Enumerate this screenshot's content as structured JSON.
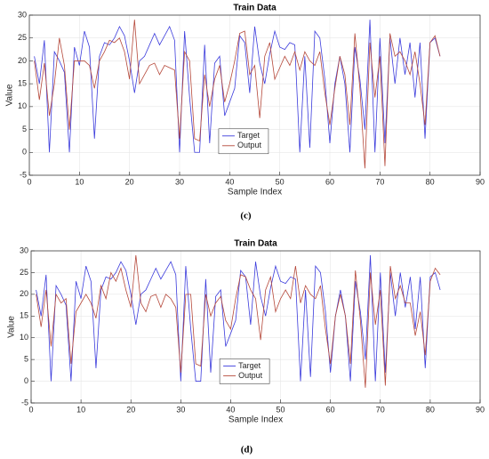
{
  "chart_data": [
    {
      "type": "line",
      "title": "Train Data",
      "caption": "(c)",
      "x_label": "Sample Index",
      "y_label": "Value",
      "x": [
        1,
        2,
        3,
        4,
        5,
        6,
        7,
        8,
        9,
        10,
        11,
        12,
        13,
        14,
        15,
        16,
        17,
        18,
        19,
        20,
        21,
        22,
        23,
        24,
        25,
        26,
        27,
        28,
        29,
        30,
        31,
        32,
        33,
        34,
        35,
        36,
        37,
        38,
        39,
        40,
        41,
        42,
        43,
        44,
        45,
        46,
        47,
        48,
        49,
        50,
        51,
        52,
        53,
        54,
        55,
        56,
        57,
        58,
        59,
        60,
        61,
        62,
        63,
        64,
        65,
        66,
        67,
        68,
        69,
        70,
        71,
        72,
        73,
        74,
        75,
        76,
        77,
        78,
        79,
        80,
        81,
        82
      ],
      "series": [
        {
          "name": "Target",
          "color": "#3b3bdc",
          "values": [
            21,
            15,
            24.5,
            0,
            22,
            20,
            17.5,
            0,
            23,
            19,
            26.5,
            23,
            3,
            21,
            24,
            23.5,
            25,
            27.5,
            25.5,
            20,
            13,
            20,
            21,
            23.5,
            26,
            23.5,
            25.5,
            27.5,
            24.5,
            0,
            26.5,
            12,
            0,
            0,
            23.5,
            2,
            19.5,
            21,
            8,
            11,
            14,
            25.5,
            24,
            13,
            27.5,
            19.5,
            15,
            21.5,
            26.5,
            23,
            22.5,
            24,
            23.5,
            0,
            21,
            1,
            26.5,
            25,
            16,
            2,
            15,
            21,
            15,
            0,
            23,
            16,
            5,
            29,
            0,
            25,
            2,
            25,
            15,
            25,
            17,
            24,
            12,
            24,
            3,
            24,
            25,
            21
          ]
        },
        {
          "name": "Output",
          "color": "#b5483a",
          "values": [
            20,
            11.5,
            19.5,
            8,
            15,
            25,
            19,
            5,
            20,
            20,
            20,
            19,
            14,
            20,
            22,
            24.5,
            24,
            25,
            22,
            16,
            29,
            15,
            17,
            19,
            19.5,
            17,
            19,
            18.5,
            18,
            3,
            22,
            20,
            3,
            2.5,
            17,
            10,
            16,
            19,
            11,
            15,
            20,
            26,
            26.5,
            17,
            19,
            7.5,
            21,
            24,
            16,
            18.5,
            21,
            19,
            22,
            18,
            22,
            20,
            19,
            22,
            13,
            6,
            14,
            21,
            17,
            6,
            26,
            14,
            -3.5,
            24,
            12,
            21,
            -3,
            26,
            21,
            22,
            20,
            17,
            22,
            15,
            6,
            24,
            25.5,
            21
          ]
        }
      ],
      "xlim": [
        0,
        90
      ],
      "xticks": [
        0,
        10,
        20,
        30,
        40,
        50,
        60,
        70,
        80,
        90
      ],
      "ylim": [
        -5,
        30
      ],
      "yticks": [
        -5,
        0,
        5,
        10,
        15,
        20,
        25,
        30
      ],
      "grid": true,
      "legend": "lower center"
    },
    {
      "type": "line",
      "title": "Train Data",
      "caption": "(d)",
      "x_label": "Sample Index",
      "y_label": "Value",
      "x": [
        1,
        2,
        3,
        4,
        5,
        6,
        7,
        8,
        9,
        10,
        11,
        12,
        13,
        14,
        15,
        16,
        17,
        18,
        19,
        20,
        21,
        22,
        23,
        24,
        25,
        26,
        27,
        28,
        29,
        30,
        31,
        32,
        33,
        34,
        35,
        36,
        37,
        38,
        39,
        40,
        41,
        42,
        43,
        44,
        45,
        46,
        47,
        48,
        49,
        50,
        51,
        52,
        53,
        54,
        55,
        56,
        57,
        58,
        59,
        60,
        61,
        62,
        63,
        64,
        65,
        66,
        67,
        68,
        69,
        70,
        71,
        72,
        73,
        74,
        75,
        76,
        77,
        78,
        79,
        80,
        81,
        82
      ],
      "series": [
        {
          "name": "Target",
          "color": "#3b3bdc",
          "values": [
            21,
            15,
            24.5,
            0,
            22,
            20,
            17.5,
            0,
            23,
            19,
            26.5,
            23,
            3,
            21,
            24,
            23.5,
            25,
            27.5,
            25.5,
            20,
            13,
            20,
            21,
            23.5,
            26,
            23.5,
            25.5,
            27.5,
            24.5,
            0,
            26.5,
            12,
            0,
            0,
            23.5,
            2,
            19.5,
            21,
            8,
            11,
            14,
            25.5,
            24,
            13,
            27.5,
            19.5,
            15,
            21.5,
            26.5,
            23,
            22.5,
            24,
            23.5,
            0,
            21,
            1,
            26.5,
            25,
            16,
            2,
            15,
            21,
            15,
            0,
            23,
            16,
            5,
            29,
            0,
            25,
            2,
            25,
            15,
            25,
            17,
            24,
            12,
            24,
            3,
            24,
            25,
            21
          ]
        },
        {
          "name": "Output",
          "color": "#b5483a",
          "values": [
            20,
            12.5,
            21,
            8,
            20,
            18,
            19,
            4,
            16,
            18,
            20,
            18,
            14.5,
            22,
            19,
            25,
            23,
            26,
            21,
            17,
            29,
            18,
            16,
            19.5,
            20,
            17,
            20,
            19,
            17,
            2,
            20,
            20,
            4,
            3.5,
            20,
            15,
            18,
            19.5,
            14,
            12,
            19,
            24.5,
            24,
            21,
            19,
            9.5,
            21,
            24,
            16,
            19,
            21,
            19,
            26.5,
            18,
            22,
            20,
            19,
            22,
            12,
            4,
            15,
            20,
            15,
            4,
            25.5,
            14,
            -1.5,
            25,
            13,
            21,
            -1,
            26.5,
            19,
            22,
            18,
            18,
            10.5,
            16,
            6,
            23,
            26,
            24.5
          ]
        }
      ],
      "xlim": [
        0,
        90
      ],
      "xticks": [
        0,
        10,
        20,
        30,
        40,
        50,
        60,
        70,
        80,
        90
      ],
      "ylim": [
        -5,
        30
      ],
      "yticks": [
        -5,
        0,
        5,
        10,
        15,
        20,
        25,
        30
      ],
      "grid": true,
      "legend": "lower center"
    }
  ]
}
